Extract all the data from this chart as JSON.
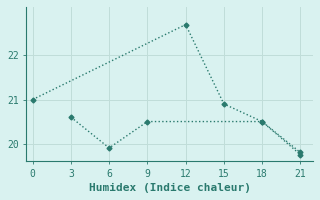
{
  "xlabel": "Humidex (Indice chaleur)",
  "series1_x": [
    0,
    12,
    15,
    18,
    21
  ],
  "series1_y": [
    21.0,
    22.7,
    20.9,
    20.5,
    19.8
  ],
  "series2_x": [
    3,
    6,
    9,
    18,
    21
  ],
  "series2_y": [
    20.6,
    19.9,
    20.5,
    20.5,
    19.75
  ],
  "line_color": "#2a7a6e",
  "bg_color": "#d9f2f0",
  "grid_color": "#c0ddd9",
  "xlim": [
    -0.5,
    22
  ],
  "ylim": [
    19.6,
    23.1
  ],
  "xticks": [
    0,
    3,
    6,
    9,
    12,
    15,
    18,
    21
  ],
  "yticks": [
    20,
    21,
    22
  ],
  "marker": "D",
  "markersize": 2.5,
  "linewidth": 1.0,
  "xlabel_fontsize": 8,
  "tick_fontsize": 7,
  "spine_color": "#2a7a6e"
}
